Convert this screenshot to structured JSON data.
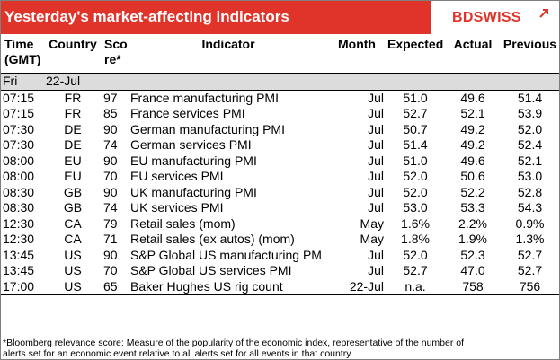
{
  "banner": {
    "title": "Yesterday's market-affecting indicators",
    "brand": "BDSWISS",
    "colors": {
      "brand_red": "#e0342a",
      "day_row_bg": "#dcdcdc"
    }
  },
  "table": {
    "headers": {
      "time_line1": "Time",
      "time_line2": "(GMT)",
      "country": "Country",
      "score_line1": "Sco",
      "score_line2": "re*",
      "indicator": "Indicator",
      "month": "Month",
      "expected": "Expected",
      "actual": "Actual",
      "previous": "Previous"
    },
    "day": {
      "name": "Fri",
      "date": "22-Jul"
    },
    "rows": [
      {
        "time": "07:15",
        "country": "FR",
        "score": "97",
        "indicator": "France manufacturing PMI",
        "month": "Jul",
        "expected": "51.0",
        "actual": "49.6",
        "previous": "51.4"
      },
      {
        "time": "07:15",
        "country": "FR",
        "score": "85",
        "indicator": "France services PMI",
        "month": "Jul",
        "expected": "52.7",
        "actual": "52.1",
        "previous": "53.9"
      },
      {
        "time": "07:30",
        "country": "DE",
        "score": "90",
        "indicator": "German manufacturing PMI",
        "month": "Jul",
        "expected": "50.7",
        "actual": "49.2",
        "previous": "52.0"
      },
      {
        "time": "07:30",
        "country": "DE",
        "score": "74",
        "indicator": "German services PMI",
        "month": "Jul",
        "expected": "51.4",
        "actual": "49.2",
        "previous": "52.4"
      },
      {
        "time": "08:00",
        "country": "EU",
        "score": "90",
        "indicator": "EU manufacturing PMI",
        "month": "Jul",
        "expected": "51.0",
        "actual": "49.6",
        "previous": "52.1"
      },
      {
        "time": "08:00",
        "country": "EU",
        "score": "70",
        "indicator": "EU services PMI",
        "month": "Jul",
        "expected": "52.0",
        "actual": "50.6",
        "previous": "53.0"
      },
      {
        "time": "08:30",
        "country": "GB",
        "score": "90",
        "indicator": "UK manufacturing PMI",
        "month": "Jul",
        "expected": "52.0",
        "actual": "52.2",
        "previous": "52.8"
      },
      {
        "time": "08:30",
        "country": "GB",
        "score": "74",
        "indicator": "UK services PMI",
        "month": "Jul",
        "expected": "53.0",
        "actual": "53.3",
        "previous": "54.3"
      },
      {
        "time": "12:30",
        "country": "CA",
        "score": "79",
        "indicator": "Retail sales (mom)",
        "month": "May",
        "expected": "1.6%",
        "actual": "2.2%",
        "previous": "0.9%"
      },
      {
        "time": "12:30",
        "country": "CA",
        "score": "71",
        "indicator": "Retail sales (ex autos) (mom)",
        "month": "May",
        "expected": "1.8%",
        "actual": "1.9%",
        "previous": "1.3%"
      },
      {
        "time": "13:45",
        "country": "US",
        "score": "90",
        "indicator": "S&P Global US manufacturing PM",
        "month": "Jul",
        "expected": "52.0",
        "actual": "52.3",
        "previous": "52.7"
      },
      {
        "time": "13:45",
        "country": "US",
        "score": "70",
        "indicator": "S&P Global US services PMI",
        "month": "Jul",
        "expected": "52.7",
        "actual": "47.0",
        "previous": "52.7"
      },
      {
        "time": "17:00",
        "country": "US",
        "score": "65",
        "indicator": "Baker Hughes US rig count",
        "month": "22-Jul",
        "expected": "n.a.",
        "actual": "758",
        "previous": "756"
      }
    ]
  },
  "footnote": {
    "line1": "*Bloomberg relevance score:  Measure of the popularity of the economic index, representative of the number of",
    "line2": "alerts set for an economic event relative to all alerts set for all events in that country."
  }
}
